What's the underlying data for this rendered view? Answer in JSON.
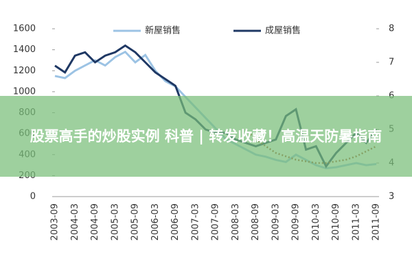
{
  "chart_data": {
    "type": "line",
    "categories": [
      "2003-09",
      null,
      "2004-03",
      null,
      "2004-09",
      null,
      "2005-03",
      null,
      "2005-09",
      null,
      "2006-03",
      null,
      "2006-09",
      null,
      "2007-03",
      null,
      "2007-09",
      null,
      "2008-03",
      null,
      "2008-09",
      null,
      "2009-03",
      null,
      "2009-09",
      null,
      "2010-03",
      null,
      "2010-09",
      null,
      "2011-03",
      null,
      "2011-09"
    ],
    "series": [
      {
        "name": "新屋销售",
        "color": "#9cc3e4",
        "values": [
          1150,
          1130,
          1200,
          1250,
          1300,
          1250,
          1330,
          1380,
          1280,
          1350,
          1200,
          1100,
          1050,
          950,
          850,
          750,
          650,
          550,
          500,
          450,
          400,
          380,
          350,
          330,
          400,
          350,
          300,
          270,
          280,
          300,
          320,
          300,
          310
        ]
      },
      {
        "name": "成屋销售",
        "color": "#1f3864",
        "axis": "y2",
        "values": [
          6.9,
          6.7,
          7.2,
          7.3,
          7.0,
          7.2,
          7.3,
          7.5,
          7.3,
          7.0,
          6.7,
          6.5,
          6.3,
          5.5,
          5.3,
          5.0,
          4.9,
          4.9,
          4.7,
          4.6,
          4.5,
          4.6,
          4.7,
          5.4,
          5.6,
          4.4,
          4.5,
          3.9,
          4.3,
          4.6,
          4.9,
          4.6,
          5.0
        ]
      },
      {
        "color": "#a0522d",
        "axis": "y2",
        "values": [
          null,
          null,
          null,
          null,
          null,
          null,
          null,
          null,
          null,
          null,
          null,
          null,
          null,
          null,
          null,
          null,
          null,
          null,
          null,
          5.0,
          4.7,
          4.5,
          4.3,
          4.2,
          4.1,
          4.05,
          4.0,
          4.0,
          4.05,
          4.1,
          4.2,
          4.35,
          4.5
        ]
      }
    ],
    "ylim": [
      0,
      1600
    ],
    "yticks": [
      0,
      200,
      400,
      600,
      800,
      1000,
      1200,
      1400,
      1600
    ],
    "y2lim": [
      3,
      8
    ],
    "y2ticks": [
      3,
      4,
      5,
      6,
      7,
      8
    ]
  },
  "banner": "股票高手的炒股实例 科普 | 转发收藏！高温天防暑指南"
}
